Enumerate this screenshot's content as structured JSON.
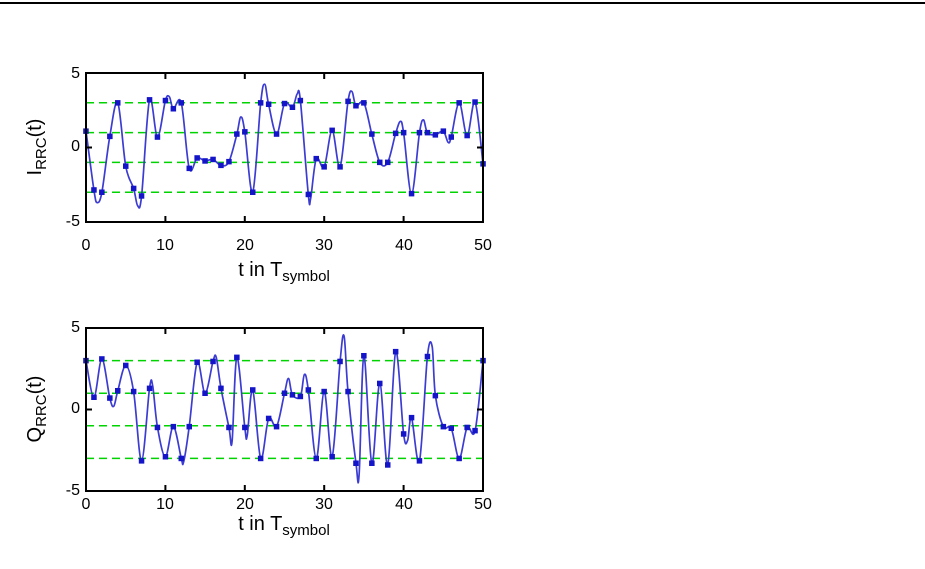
{
  "style": {
    "background": "#ffffff",
    "top_rule_color": "#000000",
    "axis_color": "#000000",
    "line_color": "#3c3cd2",
    "marker_color": "#1414c8",
    "level_line_color": "#00d400",
    "text_color": "#000000"
  },
  "plots": [
    {
      "ylabel": {
        "base": "I",
        "sub": "RRC",
        "suffix": "(t)"
      },
      "xlabel": {
        "base": "t in T",
        "sub": "symbol"
      },
      "yticks": [
        "5",
        "0",
        "-5"
      ],
      "xticks": [
        "0",
        "10",
        "20",
        "30",
        "40",
        "50"
      ]
    },
    {
      "ylabel": {
        "base": "Q",
        "sub": "RRC",
        "suffix": "(t)"
      },
      "xlabel": {
        "base": "t in T",
        "sub": "symbol"
      },
      "yticks": [
        "5",
        "0",
        "-5"
      ],
      "xticks": [
        "0",
        "10",
        "20",
        "30",
        "40",
        "50"
      ]
    }
  ],
  "chart_data": [
    {
      "type": "line",
      "name": "I_RRC",
      "title": "",
      "xlabel": "t in T_symbol",
      "ylabel": "I_RRC(t)",
      "xlim": [
        0,
        50
      ],
      "ylim": [
        -5,
        5
      ],
      "xtick_values": [
        0,
        10,
        20,
        30,
        40,
        50
      ],
      "ytick_values": [
        5,
        0,
        -5
      ],
      "reference_levels": [
        3,
        1,
        -1,
        -3
      ],
      "reference_style": "dashed",
      "marker": "filled-square",
      "x": [
        0,
        1,
        2,
        3,
        4,
        5,
        6,
        7,
        8,
        9,
        10,
        11,
        12,
        13,
        14,
        15,
        16,
        17,
        18,
        19,
        20,
        21,
        22,
        23,
        24,
        25,
        26,
        27,
        28,
        29,
        30,
        31,
        32,
        33,
        34,
        35,
        36,
        37,
        38,
        39,
        40,
        41,
        42,
        43,
        44,
        45,
        46,
        47,
        48,
        49,
        50
      ],
      "values": [
        1.1,
        -2.85,
        -3,
        0.75,
        3,
        -1.25,
        -2.75,
        -3.25,
        3.2,
        0.7,
        3.15,
        2.6,
        3,
        -1.4,
        -0.7,
        -0.9,
        -0.8,
        -1.2,
        -0.95,
        0.9,
        1.05,
        -3,
        3,
        2.9,
        0.9,
        2.95,
        2.7,
        3.15,
        -3.15,
        -0.75,
        -1.3,
        1.15,
        -1.3,
        3.1,
        2.8,
        3,
        0.9,
        -1,
        -1,
        0.95,
        1,
        -3.1,
        1,
        1,
        0.85,
        1.1,
        0.7,
        3,
        0.8,
        3.05,
        -1.1
      ],
      "overshoot_points": [
        [
          1.4,
          -3.7
        ],
        [
          6.5,
          -3.9
        ],
        [
          10.5,
          3.4
        ],
        [
          19.5,
          2.05
        ],
        [
          22.5,
          4.25
        ],
        [
          26.6,
          3.6
        ],
        [
          28.3,
          -3.4
        ],
        [
          33.5,
          3.75
        ],
        [
          39.6,
          1.75
        ],
        [
          42.5,
          1.85
        ],
        [
          45.6,
          0.35
        ]
      ]
    },
    {
      "type": "line",
      "name": "Q_RRC",
      "title": "",
      "xlabel": "t in T_symbol",
      "ylabel": "Q_RRC(t)",
      "xlim": [
        0,
        50
      ],
      "ylim": [
        -5,
        5
      ],
      "xtick_values": [
        0,
        10,
        20,
        30,
        40,
        50
      ],
      "ytick_values": [
        5,
        0,
        -5
      ],
      "reference_levels": [
        3,
        1,
        -1,
        -3
      ],
      "reference_style": "dashed",
      "marker": "filled-square",
      "x": [
        0,
        1,
        2,
        3,
        4,
        5,
        6,
        7,
        8,
        9,
        10,
        11,
        12,
        13,
        14,
        15,
        16,
        17,
        18,
        19,
        20,
        21,
        22,
        23,
        24,
        25,
        26,
        27,
        28,
        29,
        30,
        31,
        32,
        33,
        34,
        35,
        36,
        37,
        38,
        39,
        40,
        41,
        42,
        43,
        44,
        45,
        46,
        47,
        48,
        49,
        50
      ],
      "values": [
        3,
        0.75,
        3.1,
        0.7,
        1.15,
        2.7,
        1.1,
        -3.15,
        1.3,
        -1.1,
        -2.9,
        -1.05,
        -3,
        -1.05,
        2.9,
        1,
        2.95,
        1.3,
        -1.1,
        3.2,
        -1.1,
        1.2,
        -3,
        -0.55,
        -1.05,
        1,
        0.9,
        0.8,
        1.2,
        -3,
        1.1,
        -2.9,
        2.95,
        1.1,
        -3.3,
        3.3,
        -3.3,
        1.6,
        -3.4,
        3.55,
        -1.5,
        -0.5,
        -3.15,
        3.25,
        0.85,
        -1.05,
        -1.15,
        -3,
        -1.1,
        -1.3,
        3
      ],
      "overshoot_points": [
        [
          3.5,
          0.2
        ],
        [
          8.4,
          1.45
        ],
        [
          12.3,
          -3.2
        ],
        [
          16.4,
          3.2
        ],
        [
          18.4,
          -1.95
        ],
        [
          20.3,
          -1.6
        ],
        [
          25.5,
          1.9
        ],
        [
          27.5,
          2.15
        ],
        [
          32.5,
          4.5
        ],
        [
          34.4,
          -4
        ],
        [
          40.5,
          -1.9
        ],
        [
          43.6,
          3.85
        ]
      ]
    }
  ]
}
